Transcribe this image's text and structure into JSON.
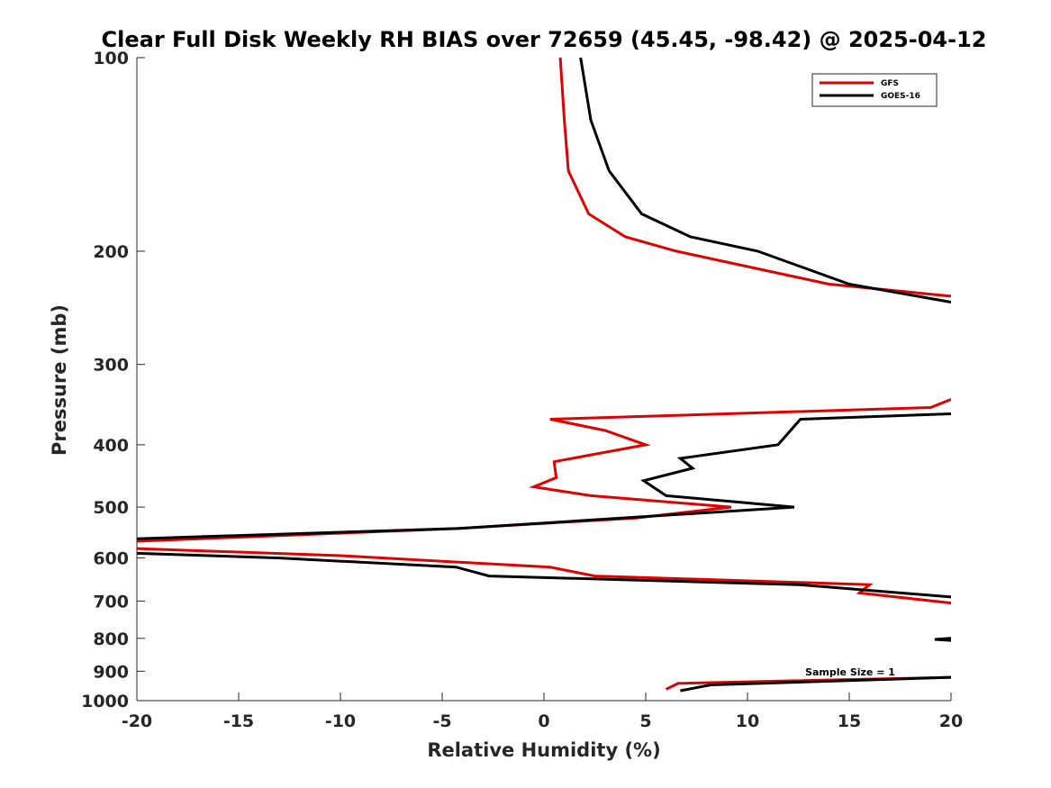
{
  "chart_data": {
    "type": "line",
    "title": "Clear Full Disk Weekly RH BIAS over 72659 (45.45, -98.42) @ 2025-04-12",
    "xlabel": "Relative Humidity (%)",
    "ylabel": "Pressure (mb)",
    "xlim": [
      -20,
      20
    ],
    "ylim": [
      1000,
      100
    ],
    "yscale": "log",
    "xticks": [
      -20,
      -15,
      -10,
      -5,
      0,
      5,
      10,
      15,
      20
    ],
    "yticks": [
      100,
      200,
      300,
      400,
      500,
      600,
      700,
      800,
      900,
      1000
    ],
    "grid": false,
    "legend_position": "top-right",
    "annotation": "Sample Size = 1",
    "colors": {
      "GFS": "#e00000",
      "GOES-16": "#000000"
    },
    "series": [
      {
        "name": "GFS",
        "segments": [
          [
            [
              0.8,
              100
            ],
            [
              1.0,
              125
            ],
            [
              1.2,
              150
            ],
            [
              2.2,
              175
            ],
            [
              4.0,
              190
            ],
            [
              6.5,
              200
            ],
            [
              14.0,
              225
            ],
            [
              20.0,
              235
            ]
          ],
          [
            [
              20.0,
              340
            ],
            [
              19.0,
              350
            ],
            [
              0.3,
              365
            ],
            [
              3.0,
              380
            ],
            [
              5.0,
              400
            ],
            [
              0.5,
              425
            ],
            [
              0.6,
              450
            ],
            [
              -0.5,
              465
            ],
            [
              2.3,
              480
            ],
            [
              9.2,
              500
            ],
            [
              4.5,
              520
            ],
            [
              -4.3,
              540
            ],
            [
              -20.0,
              565
            ]
          ],
          [
            [
              -20.0,
              580
            ],
            [
              -10.0,
              595
            ],
            [
              0.3,
              620
            ],
            [
              2.5,
              640
            ],
            [
              16.0,
              660
            ],
            [
              15.5,
              680
            ],
            [
              20.0,
              705
            ]
          ],
          [
            [
              6.0,
              960
            ],
            [
              6.6,
              940
            ],
            [
              20.0,
              920
            ]
          ]
        ]
      },
      {
        "name": "GOES-16",
        "segments": [
          [
            [
              1.8,
              100
            ],
            [
              2.3,
              125
            ],
            [
              3.2,
              150
            ],
            [
              4.8,
              175
            ],
            [
              7.2,
              190
            ],
            [
              10.5,
              200
            ],
            [
              15.0,
              225
            ],
            [
              20.0,
              240
            ]
          ],
          [
            [
              20.0,
              358
            ],
            [
              12.6,
              365
            ],
            [
              11.5,
              400
            ],
            [
              6.7,
              420
            ],
            [
              7.3,
              435
            ],
            [
              4.9,
              455
            ],
            [
              6.0,
              480
            ],
            [
              12.3,
              500
            ],
            [
              -4.3,
              540
            ],
            [
              -20.0,
              560
            ]
          ],
          [
            [
              -20.0,
              590
            ],
            [
              -13.0,
              600
            ],
            [
              -4.3,
              620
            ],
            [
              -2.7,
              640
            ],
            [
              12.5,
              660
            ],
            [
              20.0,
              690
            ]
          ],
          [
            [
              20.0,
              800
            ],
            [
              19.2,
              803
            ],
            [
              20.0,
              806
            ]
          ],
          [
            [
              6.7,
              965
            ],
            [
              8.2,
              945
            ],
            [
              20.0,
              920
            ]
          ]
        ]
      }
    ]
  }
}
